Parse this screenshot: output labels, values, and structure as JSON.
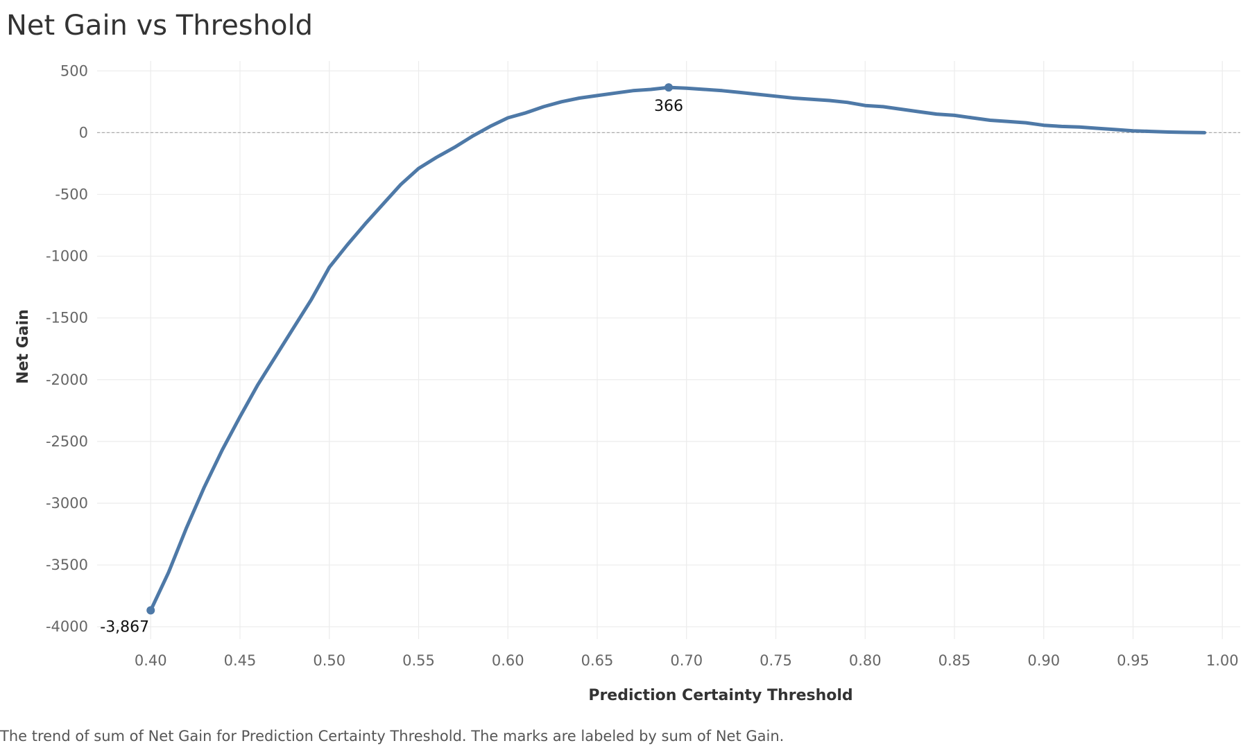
{
  "chart_data": {
    "type": "line",
    "title": "Net Gain vs Threshold",
    "xlabel": "Prediction Certainty Threshold",
    "ylabel": "Net Gain",
    "caption": "The trend of sum of Net Gain for Prediction Certainty Threshold.  The marks are labeled by sum of Net Gain.",
    "xlim": [
      0.37,
      1.01
    ],
    "ylim": [
      -4100,
      580
    ],
    "x_ticks": [
      0.4,
      0.45,
      0.5,
      0.55,
      0.6,
      0.65,
      0.7,
      0.75,
      0.8,
      0.85,
      0.9,
      0.95,
      1.0
    ],
    "x_tick_labels": [
      "0.40",
      "0.45",
      "0.50",
      "0.55",
      "0.60",
      "0.65",
      "0.70",
      "0.75",
      "0.80",
      "0.85",
      "0.90",
      "0.95",
      "1.00"
    ],
    "y_ticks": [
      500,
      0,
      -500,
      -1000,
      -1500,
      -2000,
      -2500,
      -3000,
      -3500,
      -4000
    ],
    "y_tick_labels": [
      "500",
      "0",
      "-500",
      "-1000",
      "-1500",
      "-2000",
      "-2500",
      "-3000",
      "-3500",
      "-4000"
    ],
    "grid": true,
    "zero_line": true,
    "line_color": "#4e79a7",
    "series": [
      {
        "x": [
          0.4,
          0.41,
          0.42,
          0.43,
          0.44,
          0.45,
          0.46,
          0.47,
          0.48,
          0.49,
          0.5,
          0.51,
          0.52,
          0.53,
          0.54,
          0.55,
          0.56,
          0.57,
          0.58,
          0.59,
          0.6,
          0.61,
          0.62,
          0.63,
          0.64,
          0.65,
          0.66,
          0.67,
          0.68,
          0.69,
          0.7,
          0.71,
          0.72,
          0.73,
          0.74,
          0.75,
          0.76,
          0.77,
          0.78,
          0.79,
          0.8,
          0.81,
          0.82,
          0.83,
          0.84,
          0.85,
          0.86,
          0.87,
          0.88,
          0.89,
          0.9,
          0.91,
          0.92,
          0.93,
          0.94,
          0.95,
          0.96,
          0.97,
          0.98,
          0.99
        ],
        "y": [
          -3867,
          -3560,
          -3200,
          -2870,
          -2570,
          -2300,
          -2040,
          -1810,
          -1580,
          -1350,
          -1090,
          -910,
          -740,
          -580,
          -420,
          -290,
          -200,
          -120,
          -30,
          50,
          120,
          160,
          210,
          250,
          280,
          300,
          320,
          340,
          350,
          366,
          360,
          350,
          340,
          325,
          310,
          295,
          280,
          270,
          260,
          245,
          220,
          210,
          190,
          170,
          150,
          140,
          120,
          100,
          90,
          80,
          60,
          50,
          45,
          35,
          25,
          15,
          10,
          5,
          2,
          0
        ]
      }
    ],
    "annotations": [
      {
        "x": 0.4,
        "y": -3867,
        "text": "-3,867",
        "position": "below-left"
      },
      {
        "x": 0.69,
        "y": 366,
        "text": "366",
        "position": "below"
      }
    ]
  }
}
